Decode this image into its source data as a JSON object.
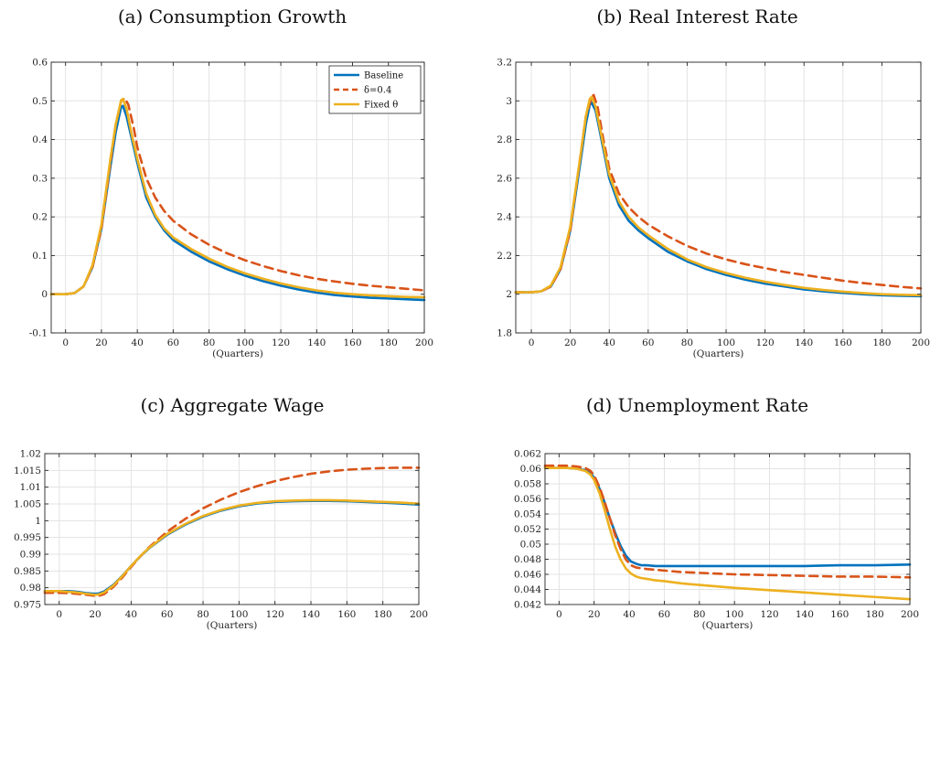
{
  "chart_data": [
    {
      "type": "line",
      "title": "(a) Consumption Growth",
      "xlabel": "(Quarters)",
      "ylabel": "",
      "xlim": [
        -8,
        200
      ],
      "ylim": [
        -0.1,
        0.6
      ],
      "xticks": [
        0,
        20,
        40,
        60,
        80,
        100,
        120,
        140,
        160,
        180,
        200
      ],
      "yticks": [
        -0.1,
        0,
        0.1,
        0.2,
        0.3,
        0.4,
        0.5,
        0.6
      ],
      "ytick_labels": [
        "-0.1",
        "0",
        "0.1",
        "0.2",
        "0.3",
        "0.4",
        "0.5",
        "0.6"
      ],
      "grid": true,
      "legend": "top-right",
      "series": [
        {
          "name": "Baseline",
          "color": "#0072BD",
          "dash": "solid",
          "x": [
            -8,
            0,
            5,
            10,
            15,
            20,
            25,
            28,
            31,
            32,
            34,
            37,
            40,
            45,
            50,
            55,
            60,
            70,
            80,
            90,
            100,
            110,
            120,
            130,
            140,
            150,
            160,
            170,
            180,
            190,
            200
          ],
          "y": [
            0,
            0,
            0.003,
            0.02,
            0.07,
            0.17,
            0.33,
            0.42,
            0.485,
            0.487,
            0.46,
            0.4,
            0.34,
            0.25,
            0.2,
            0.165,
            0.14,
            0.11,
            0.085,
            0.065,
            0.048,
            0.034,
            0.022,
            0.012,
            0.004,
            -0.002,
            -0.006,
            -0.009,
            -0.011,
            -0.013,
            -0.015
          ]
        },
        {
          "name": "δ=0.4",
          "color": "#D95319",
          "dash": "dashed",
          "x": [
            -8,
            0,
            5,
            10,
            15,
            20,
            25,
            28,
            31,
            33,
            35,
            38,
            40,
            45,
            50,
            55,
            60,
            70,
            80,
            90,
            100,
            110,
            120,
            130,
            140,
            150,
            160,
            170,
            180,
            190,
            200
          ],
          "y": [
            0,
            0,
            0.003,
            0.02,
            0.07,
            0.17,
            0.34,
            0.44,
            0.5,
            0.507,
            0.49,
            0.43,
            0.38,
            0.3,
            0.25,
            0.215,
            0.19,
            0.155,
            0.128,
            0.106,
            0.088,
            0.073,
            0.06,
            0.049,
            0.04,
            0.033,
            0.027,
            0.022,
            0.018,
            0.014,
            0.01
          ]
        },
        {
          "name": "Fixed θ",
          "color": "#EDB120",
          "dash": "solid",
          "x": [
            -8,
            0,
            5,
            10,
            15,
            20,
            25,
            28,
            31,
            32,
            34,
            37,
            40,
            45,
            50,
            55,
            60,
            70,
            80,
            90,
            100,
            110,
            120,
            130,
            140,
            150,
            160,
            170,
            180,
            190,
            200
          ],
          "y": [
            0,
            0,
            0.003,
            0.02,
            0.075,
            0.18,
            0.35,
            0.44,
            0.502,
            0.505,
            0.48,
            0.41,
            0.35,
            0.26,
            0.205,
            0.17,
            0.147,
            0.117,
            0.092,
            0.071,
            0.054,
            0.04,
            0.028,
            0.018,
            0.01,
            0.004,
            0,
            -0.003,
            -0.005,
            -0.007,
            -0.008
          ]
        }
      ]
    },
    {
      "type": "line",
      "title": "(b) Real Interest Rate",
      "xlabel": "(Quarters)",
      "ylabel": "",
      "xlim": [
        -8,
        200
      ],
      "ylim": [
        1.8,
        3.2
      ],
      "xticks": [
        0,
        20,
        40,
        60,
        80,
        100,
        120,
        140,
        160,
        180,
        200
      ],
      "yticks": [
        1.8,
        2,
        2.2,
        2.4,
        2.6,
        2.8,
        3,
        3.2
      ],
      "ytick_labels": [
        "1.8",
        "2",
        "2.2",
        "2.4",
        "2.6",
        "2.8",
        "3",
        "3.2"
      ],
      "grid": true,
      "legend": "none",
      "series": [
        {
          "name": "Baseline",
          "color": "#0072BD",
          "dash": "solid",
          "x": [
            -8,
            0,
            5,
            10,
            15,
            20,
            25,
            28,
            30,
            31,
            33,
            36,
            40,
            45,
            50,
            55,
            60,
            70,
            80,
            90,
            100,
            110,
            120,
            130,
            140,
            150,
            160,
            170,
            180,
            190,
            200
          ],
          "y": [
            2.01,
            2.01,
            2.015,
            2.04,
            2.13,
            2.33,
            2.67,
            2.88,
            2.98,
            2.99,
            2.95,
            2.8,
            2.6,
            2.46,
            2.38,
            2.33,
            2.29,
            2.22,
            2.17,
            2.13,
            2.1,
            2.075,
            2.055,
            2.04,
            2.025,
            2.015,
            2.007,
            2.0,
            1.995,
            1.992,
            1.99
          ]
        },
        {
          "name": "δ=0.4",
          "color": "#D95319",
          "dash": "dashed",
          "x": [
            -8,
            0,
            5,
            10,
            15,
            20,
            25,
            28,
            31,
            32,
            34,
            37,
            40,
            45,
            50,
            55,
            60,
            70,
            80,
            90,
            100,
            110,
            120,
            130,
            140,
            150,
            160,
            170,
            180,
            190,
            200
          ],
          "y": [
            2.01,
            2.01,
            2.015,
            2.04,
            2.13,
            2.33,
            2.7,
            2.92,
            3.02,
            3.03,
            2.97,
            2.8,
            2.65,
            2.52,
            2.45,
            2.4,
            2.36,
            2.3,
            2.25,
            2.21,
            2.18,
            2.155,
            2.135,
            2.115,
            2.1,
            2.085,
            2.07,
            2.058,
            2.048,
            2.038,
            2.03
          ]
        },
        {
          "name": "Fixed θ",
          "color": "#EDB120",
          "dash": "solid",
          "x": [
            -8,
            0,
            5,
            10,
            15,
            20,
            25,
            28,
            30,
            31,
            33,
            36,
            40,
            45,
            50,
            55,
            60,
            70,
            80,
            90,
            100,
            110,
            120,
            130,
            140,
            150,
            160,
            170,
            180,
            190,
            200
          ],
          "y": [
            2.01,
            2.01,
            2.015,
            2.045,
            2.14,
            2.35,
            2.7,
            2.92,
            3.01,
            3.02,
            2.97,
            2.82,
            2.62,
            2.48,
            2.4,
            2.345,
            2.305,
            2.235,
            2.18,
            2.14,
            2.11,
            2.085,
            2.065,
            2.048,
            2.033,
            2.022,
            2.013,
            2.006,
            2.0,
            1.997,
            1.995
          ]
        }
      ]
    },
    {
      "type": "line",
      "title": "(c) Aggregate Wage",
      "xlabel": "(Quarters)",
      "ylabel": "",
      "xlim": [
        -8,
        200
      ],
      "ylim": [
        0.975,
        1.02
      ],
      "xticks": [
        0,
        20,
        40,
        60,
        80,
        100,
        120,
        140,
        160,
        180,
        200
      ],
      "yticks": [
        0.975,
        0.98,
        0.985,
        0.99,
        0.995,
        1,
        1.005,
        1.01,
        1.015,
        1.02
      ],
      "ytick_labels": [
        "0.975",
        "0.98",
        "0.985",
        "0.99",
        "0.995",
        "1",
        "1.005",
        "1.01",
        "1.015",
        "1.02"
      ],
      "grid": true,
      "legend": "none",
      "series": [
        {
          "name": "Baseline",
          "color": "#0072BD",
          "dash": "solid",
          "x": [
            -8,
            0,
            5,
            10,
            15,
            20,
            22,
            25,
            30,
            35,
            40,
            45,
            50,
            60,
            70,
            80,
            90,
            100,
            110,
            120,
            130,
            140,
            150,
            160,
            170,
            180,
            190,
            200
          ],
          "y": [
            0.979,
            0.979,
            0.979,
            0.9788,
            0.9784,
            0.9782,
            0.9783,
            0.9789,
            0.9808,
            0.9835,
            0.9865,
            0.9893,
            0.9918,
            0.9958,
            0.9988,
            1.0012,
            1.003,
            1.0043,
            1.0051,
            1.0056,
            1.0058,
            1.0059,
            1.0059,
            1.0058,
            1.0056,
            1.0054,
            1.0051,
            1.0048
          ]
        },
        {
          "name": "δ=0.4",
          "color": "#D95319",
          "dash": "dashed",
          "x": [
            -8,
            0,
            5,
            10,
            15,
            20,
            22,
            25,
            30,
            35,
            40,
            45,
            50,
            60,
            70,
            80,
            90,
            100,
            110,
            120,
            130,
            140,
            150,
            160,
            170,
            180,
            190,
            200
          ],
          "y": [
            0.9785,
            0.9785,
            0.9784,
            0.9782,
            0.9779,
            0.9776,
            0.9776,
            0.9781,
            0.9802,
            0.983,
            0.9862,
            0.9893,
            0.9921,
            0.9967,
            1.0005,
            1.0037,
            1.0063,
            1.0085,
            1.0103,
            1.0118,
            1.013,
            1.014,
            1.0147,
            1.0152,
            1.0155,
            1.0157,
            1.0158,
            1.0158
          ]
        },
        {
          "name": "Fixed θ",
          "color": "#EDB120",
          "dash": "solid",
          "x": [
            -8,
            0,
            5,
            10,
            15,
            20,
            22,
            25,
            30,
            35,
            40,
            45,
            50,
            60,
            70,
            80,
            90,
            100,
            110,
            120,
            130,
            140,
            150,
            160,
            170,
            180,
            190,
            200
          ],
          "y": [
            0.979,
            0.979,
            0.9788,
            0.9786,
            0.9782,
            0.9779,
            0.978,
            0.9786,
            0.9806,
            0.9834,
            0.9865,
            0.9894,
            0.9919,
            0.996,
            0.999,
            1.0014,
            1.0032,
            1.0045,
            1.0053,
            1.0058,
            1.006,
            1.0061,
            1.0061,
            1.006,
            1.0058,
            1.0056,
            1.0054,
            1.0051
          ]
        }
      ]
    },
    {
      "type": "line",
      "title": "(d) Unemployment Rate",
      "xlabel": "(Quarters)",
      "ylabel": "",
      "xlim": [
        -8,
        200
      ],
      "ylim": [
        0.042,
        0.062
      ],
      "xticks": [
        0,
        20,
        40,
        60,
        80,
        100,
        120,
        140,
        160,
        180,
        200
      ],
      "yticks": [
        0.042,
        0.044,
        0.046,
        0.048,
        0.05,
        0.052,
        0.054,
        0.056,
        0.058,
        0.06,
        0.062
      ],
      "ytick_labels": [
        "0.042",
        "0.044",
        "0.046",
        "0.048",
        "0.05",
        "0.052",
        "0.054",
        "0.056",
        "0.058",
        "0.06",
        "0.062"
      ],
      "grid": true,
      "legend": "none",
      "series": [
        {
          "name": "Baseline",
          "color": "#0072BD",
          "dash": "solid",
          "x": [
            -8,
            0,
            5,
            10,
            15,
            18,
            20,
            23,
            26,
            29,
            32,
            35,
            38,
            41,
            44,
            47,
            50,
            55,
            60,
            70,
            80,
            90,
            100,
            120,
            140,
            160,
            180,
            200
          ],
          "y": [
            0.0601,
            0.0601,
            0.0601,
            0.06,
            0.0598,
            0.0594,
            0.0588,
            0.0574,
            0.0555,
            0.0534,
            0.0515,
            0.0498,
            0.0485,
            0.0477,
            0.0474,
            0.0472,
            0.0472,
            0.0471,
            0.0471,
            0.0471,
            0.0471,
            0.0471,
            0.0471,
            0.0471,
            0.0471,
            0.0472,
            0.0472,
            0.0473
          ]
        },
        {
          "name": "δ=0.4",
          "color": "#D95319",
          "dash": "dashed",
          "x": [
            -8,
            0,
            5,
            10,
            15,
            18,
            20,
            23,
            26,
            29,
            32,
            35,
            38,
            41,
            44,
            47,
            50,
            55,
            60,
            70,
            80,
            90,
            100,
            120,
            140,
            160,
            180,
            200
          ],
          "y": [
            0.0604,
            0.0604,
            0.0604,
            0.0603,
            0.0601,
            0.0597,
            0.0591,
            0.0576,
            0.0556,
            0.0534,
            0.0512,
            0.0494,
            0.048,
            0.0472,
            0.0469,
            0.0468,
            0.0467,
            0.0466,
            0.0465,
            0.0463,
            0.0462,
            0.0461,
            0.046,
            0.0459,
            0.0458,
            0.0457,
            0.0457,
            0.0456
          ]
        },
        {
          "name": "Fixed θ",
          "color": "#EDB120",
          "dash": "solid",
          "x": [
            -8,
            0,
            5,
            10,
            15,
            18,
            20,
            23,
            26,
            29,
            32,
            35,
            38,
            41,
            44,
            47,
            50,
            55,
            60,
            70,
            80,
            90,
            100,
            120,
            140,
            160,
            180,
            200
          ],
          "y": [
            0.0601,
            0.0601,
            0.0601,
            0.06,
            0.0597,
            0.0592,
            0.0585,
            0.0568,
            0.0545,
            0.052,
            0.0497,
            0.048,
            0.0468,
            0.0461,
            0.0457,
            0.0455,
            0.0454,
            0.0452,
            0.0451,
            0.0448,
            0.0446,
            0.0444,
            0.0442,
            0.0439,
            0.0436,
            0.0433,
            0.043,
            0.0427
          ]
        }
      ]
    }
  ]
}
